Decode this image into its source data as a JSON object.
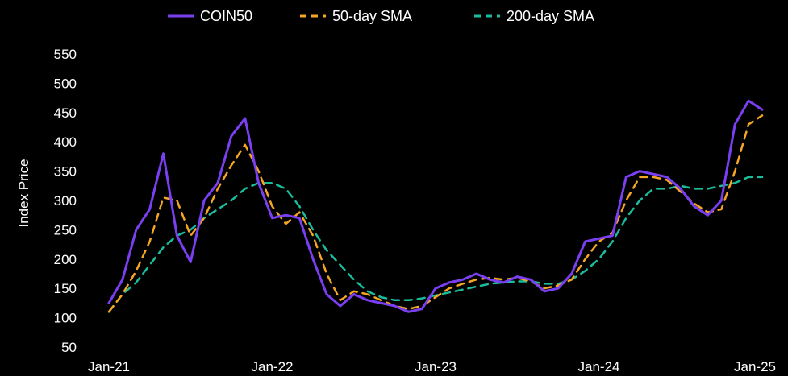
{
  "chart_data": {
    "type": "line",
    "title": "",
    "xlabel": "",
    "ylabel": "Index Price",
    "ylim": [
      50,
      550
    ],
    "xlim": [
      "2021-01",
      "2025-01"
    ],
    "y_ticks": [
      50,
      100,
      150,
      200,
      250,
      300,
      350,
      400,
      450,
      500,
      550
    ],
    "x_ticks": [
      "Jan-21",
      "Jan-22",
      "Jan-23",
      "Jan-24",
      "Jan-25"
    ],
    "grid": false,
    "legend_position": "top-center",
    "background": "#000000",
    "x": [
      "2021-01",
      "2021-02",
      "2021-03",
      "2021-04",
      "2021-05",
      "2021-06",
      "2021-07",
      "2021-08",
      "2021-09",
      "2021-10",
      "2021-11",
      "2021-12",
      "2022-01",
      "2022-02",
      "2022-03",
      "2022-04",
      "2022-05",
      "2022-06",
      "2022-07",
      "2022-08",
      "2022-09",
      "2022-10",
      "2022-11",
      "2022-12",
      "2023-01",
      "2023-02",
      "2023-03",
      "2023-04",
      "2023-05",
      "2023-06",
      "2023-07",
      "2023-08",
      "2023-09",
      "2023-10",
      "2023-11",
      "2023-12",
      "2024-01",
      "2024-02",
      "2024-03",
      "2024-04",
      "2024-05",
      "2024-06",
      "2024-07",
      "2024-08",
      "2024-09",
      "2024-10",
      "2024-11",
      "2024-12",
      "2025-01"
    ],
    "series": [
      {
        "name": "COIN50",
        "color": "#7B3FF2",
        "style": "solid",
        "values": [
          125,
          165,
          250,
          285,
          380,
          240,
          195,
          300,
          330,
          410,
          440,
          330,
          270,
          275,
          270,
          200,
          140,
          120,
          140,
          130,
          125,
          120,
          110,
          115,
          150,
          160,
          165,
          175,
          165,
          160,
          170,
          165,
          145,
          150,
          175,
          230,
          235,
          240,
          340,
          350,
          345,
          340,
          320,
          290,
          275,
          300,
          430,
          470,
          455
        ]
      },
      {
        "name": "50-day SMA",
        "color": "#F5A623",
        "style": "dashed",
        "values": [
          110,
          140,
          180,
          230,
          305,
          300,
          240,
          270,
          320,
          360,
          395,
          350,
          290,
          260,
          280,
          240,
          175,
          130,
          145,
          140,
          130,
          120,
          115,
          120,
          135,
          150,
          158,
          165,
          168,
          165,
          168,
          162,
          150,
          155,
          165,
          200,
          230,
          245,
          300,
          340,
          340,
          335,
          315,
          295,
          280,
          285,
          350,
          430,
          445
        ]
      },
      {
        "name": "200-day SMA",
        "color": "#1ABC9C",
        "style": "dashed",
        "values": [
          110,
          140,
          160,
          190,
          220,
          240,
          250,
          270,
          285,
          300,
          320,
          330,
          330,
          320,
          290,
          250,
          215,
          190,
          165,
          145,
          135,
          130,
          130,
          133,
          138,
          143,
          148,
          153,
          158,
          160,
          162,
          162,
          158,
          158,
          165,
          180,
          200,
          230,
          270,
          300,
          320,
          320,
          325,
          320,
          320,
          325,
          330,
          340,
          340
        ]
      }
    ]
  }
}
